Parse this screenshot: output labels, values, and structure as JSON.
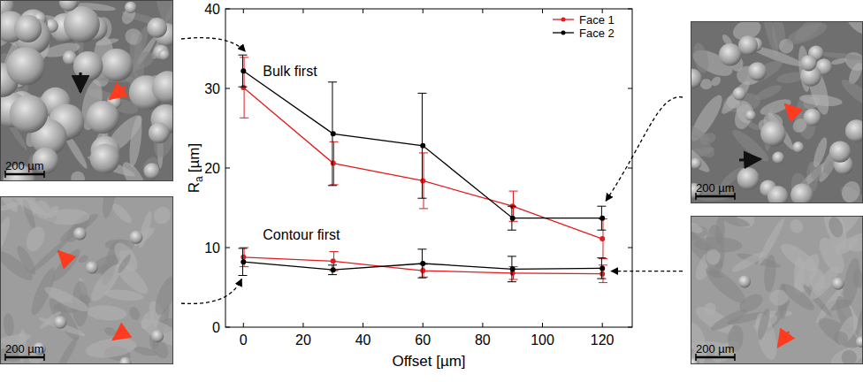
{
  "chart_data": {
    "type": "line",
    "xlabel": "Offset [µm]",
    "ylabel": {
      "symbol": "R",
      "subscript": "a",
      "unit": "[µm]"
    },
    "x": [
      0,
      30,
      60,
      90,
      120
    ],
    "xlim": [
      -6,
      130
    ],
    "xticks": [
      0,
      20,
      40,
      60,
      80,
      100,
      120
    ],
    "ylim": [
      0,
      40
    ],
    "yticks": [
      0,
      10,
      20,
      30,
      40
    ],
    "legend": "upper right",
    "marker": "circle",
    "groups": [
      {
        "label": "Bulk first",
        "series": [
          {
            "name": "Face 1",
            "color": "#e41a1c",
            "values": [
              30.1,
              20.6,
              18.4,
              15.2,
              11.1
            ],
            "errors": [
              3.8,
              2.7,
              3.5,
              1.9,
              2.5
            ]
          },
          {
            "name": "Face 2",
            "color": "#000000",
            "values": [
              32.2,
              24.3,
              22.8,
              13.7,
              13.7
            ],
            "errors": [
              2.0,
              6.5,
              6.6,
              1.5,
              1.5
            ]
          }
        ]
      },
      {
        "label": "Contour first",
        "series": [
          {
            "name": "Face 1",
            "color": "#e41a1c",
            "values": [
              8.8,
              8.3,
              7.1,
              6.8,
              6.7
            ],
            "errors": [
              1.2,
              1.2,
              0.8,
              0.8,
              1.1
            ]
          },
          {
            "name": "Face 2",
            "color": "#000000",
            "values": [
              8.2,
              7.2,
              8.0,
              7.3,
              7.4
            ],
            "errors": [
              1.7,
              0.6,
              1.8,
              1.6,
              1.3
            ]
          }
        ]
      }
    ],
    "images": [
      {
        "scale_bar_label": "200 µm"
      },
      {
        "scale_bar_label": "200 µm"
      },
      {
        "scale_bar_label": "200 µm"
      },
      {
        "scale_bar_label": "200 µm"
      }
    ]
  }
}
